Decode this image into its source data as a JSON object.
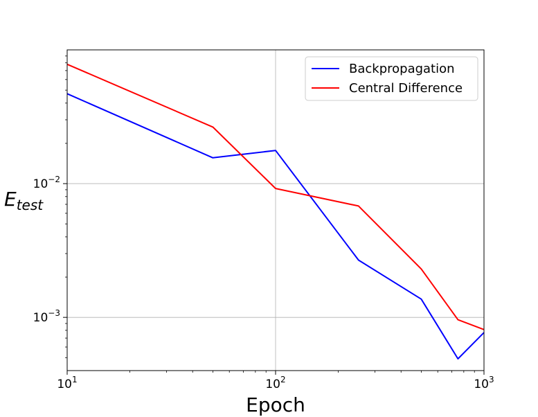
{
  "chart_data": {
    "type": "line",
    "title": "",
    "xlabel": "Epoch",
    "ylabel": {
      "main": "E",
      "sub": "test"
    },
    "xscale": "log",
    "yscale": "log",
    "xlim": [
      10,
      1000
    ],
    "ylim": [
      0.0004,
      0.1
    ],
    "grid": "major",
    "legend_position": "top-right",
    "x_ticks": [
      {
        "value": 10,
        "base": "10",
        "exp": "1"
      },
      {
        "value": 100,
        "base": "10",
        "exp": "2"
      },
      {
        "value": 1000,
        "base": "10",
        "exp": "3"
      }
    ],
    "y_ticks": [
      {
        "value": 0.01,
        "base": "10",
        "exp": "−2"
      },
      {
        "value": 0.001,
        "base": "10",
        "exp": "−3"
      }
    ],
    "series": [
      {
        "name": "Backpropagation",
        "color": "#0000ff",
        "x": [
          10,
          50,
          100,
          250,
          500,
          750,
          1000
        ],
        "y": [
          0.047,
          0.0156,
          0.0177,
          0.00268,
          0.00137,
          0.00049,
          0.00077
        ]
      },
      {
        "name": "Central Difference",
        "color": "#ff0000",
        "x": [
          10,
          50,
          100,
          250,
          500,
          750,
          1000
        ],
        "y": [
          0.078,
          0.0265,
          0.0092,
          0.0068,
          0.0023,
          0.00096,
          0.00081
        ]
      }
    ]
  }
}
